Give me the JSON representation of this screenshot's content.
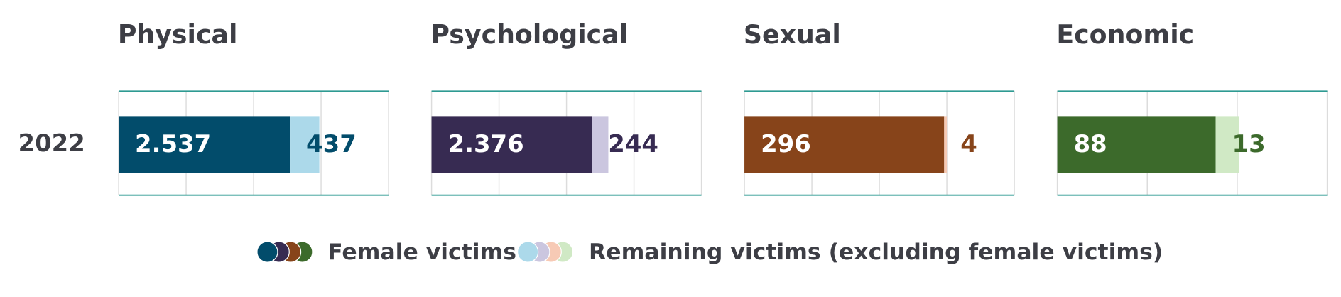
{
  "chart_data": [
    {
      "type": "bar",
      "title": "Physical",
      "categories": [
        "2022"
      ],
      "xlim": [
        0,
        4000
      ],
      "xticks": [
        0,
        1000,
        2000,
        3000,
        4000
      ],
      "grid": true,
      "series": [
        {
          "color": "#024c6b",
          "values": [
            2537
          ],
          "value_labels": [
            "2.537"
          ]
        },
        {
          "color": "#acd9ea",
          "values": [
            437
          ]
        }
      ]
    },
    {
      "type": "bar",
      "title": "Psychological",
      "categories": [
        null
      ],
      "xlim": [
        0,
        4000
      ],
      "xticks": [
        0,
        1000,
        2000,
        3000,
        4000
      ],
      "grid": true,
      "series": [
        {
          "color": "#372b52",
          "values": [
            2376
          ],
          "value_labels": [
            "2.376"
          ]
        },
        {
          "color": "#cbc6df",
          "values": [
            244
          ]
        }
      ]
    },
    {
      "type": "bar",
      "title": "Sexual",
      "categories": [
        null
      ],
      "xlim": [
        0,
        400
      ],
      "xticks": [
        0,
        100,
        200,
        300,
        400
      ],
      "grid": true,
      "series": [
        {
          "color": "#87441a",
          "values": [
            296
          ]
        },
        {
          "color": "#f7cab5",
          "values": [
            4
          ]
        }
      ]
    },
    {
      "type": "bar",
      "title": "Economic",
      "categories": [
        null
      ],
      "xlim": [
        0,
        150
      ],
      "xticks": [
        0,
        50,
        100,
        150
      ],
      "grid": true,
      "series": [
        {
          "color": "#3c6a2b",
          "values": [
            88
          ]
        },
        {
          "color": "#d0e9c5",
          "values": [
            13
          ]
        }
      ]
    }
  ],
  "legend": [
    "Female victims",
    "Remaining victims (excluding female victims)"
  ]
}
